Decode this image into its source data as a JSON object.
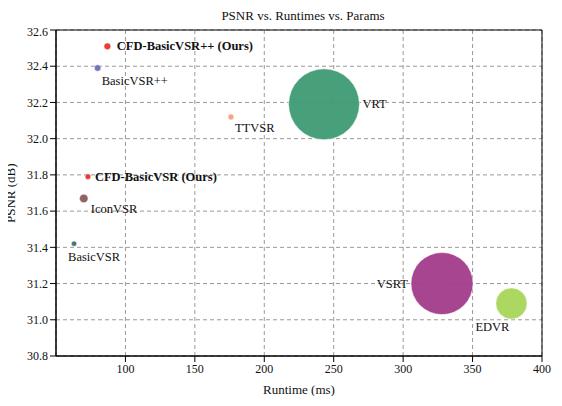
{
  "chart_data": {
    "type": "scatter",
    "title": "PSNR vs. Runtimes vs. Params",
    "x_label": "Runtime (ms)",
    "y_label": "PSNR (dB)",
    "xlim": [
      50,
      400
    ],
    "xticks": [
      100,
      150,
      200,
      250,
      300,
      350,
      400
    ],
    "ylim": [
      30.8,
      32.6
    ],
    "yticks": [
      30.8,
      {
        "value": 31,
        "label": "31.0"
      },
      31.2,
      31.4,
      31.6,
      31.8,
      {
        "value": 32,
        "label": "32.0"
      },
      32.2,
      32.4,
      32.6
    ],
    "grid": true,
    "marker": "circle",
    "series": [
      {
        "name": "CFD-BasicVSR++ (Ours)",
        "color": "#e8302a",
        "x": [
          87
        ],
        "values": [
          32.51
        ],
        "params": [
          7.5
        ]
      },
      {
        "name": "BasicVSR++",
        "color": "#6b6fb0",
        "x": [
          80
        ],
        "values": [
          32.39
        ],
        "params": [
          7.3
        ]
      },
      {
        "name": "TTVSR",
        "color": "#f6a07a",
        "x": [
          176
        ],
        "values": [
          32.12
        ],
        "params": [
          6.8
        ]
      },
      {
        "name": "VRT",
        "color": "#3e9b73",
        "x": [
          243
        ],
        "values": [
          32.19
        ],
        "params": [
          35.6
        ]
      },
      {
        "name": "CFD-BasicVSR (Ours)",
        "color": "#e8302a",
        "x": [
          73
        ],
        "values": [
          31.79
        ],
        "params": [
          6.6
        ]
      },
      {
        "name": "IconVSR",
        "color": "#8a5a5a",
        "x": [
          70
        ],
        "values": [
          31.67
        ],
        "params": [
          8.7
        ]
      },
      {
        "name": "BasicVSR",
        "color": "#3e6a6a",
        "x": [
          63
        ],
        "values": [
          31.42
        ],
        "params": [
          6.3
        ]
      },
      {
        "name": "VSRT",
        "color": "#a33b8b",
        "x": [
          328
        ],
        "values": [
          31.2
        ],
        "params": [
          32.6
        ]
      },
      {
        "name": "EDVR",
        "color": "#a8d65a",
        "x": [
          378
        ],
        "values": [
          31.09
        ],
        "params": [
          20.6
        ]
      }
    ]
  }
}
